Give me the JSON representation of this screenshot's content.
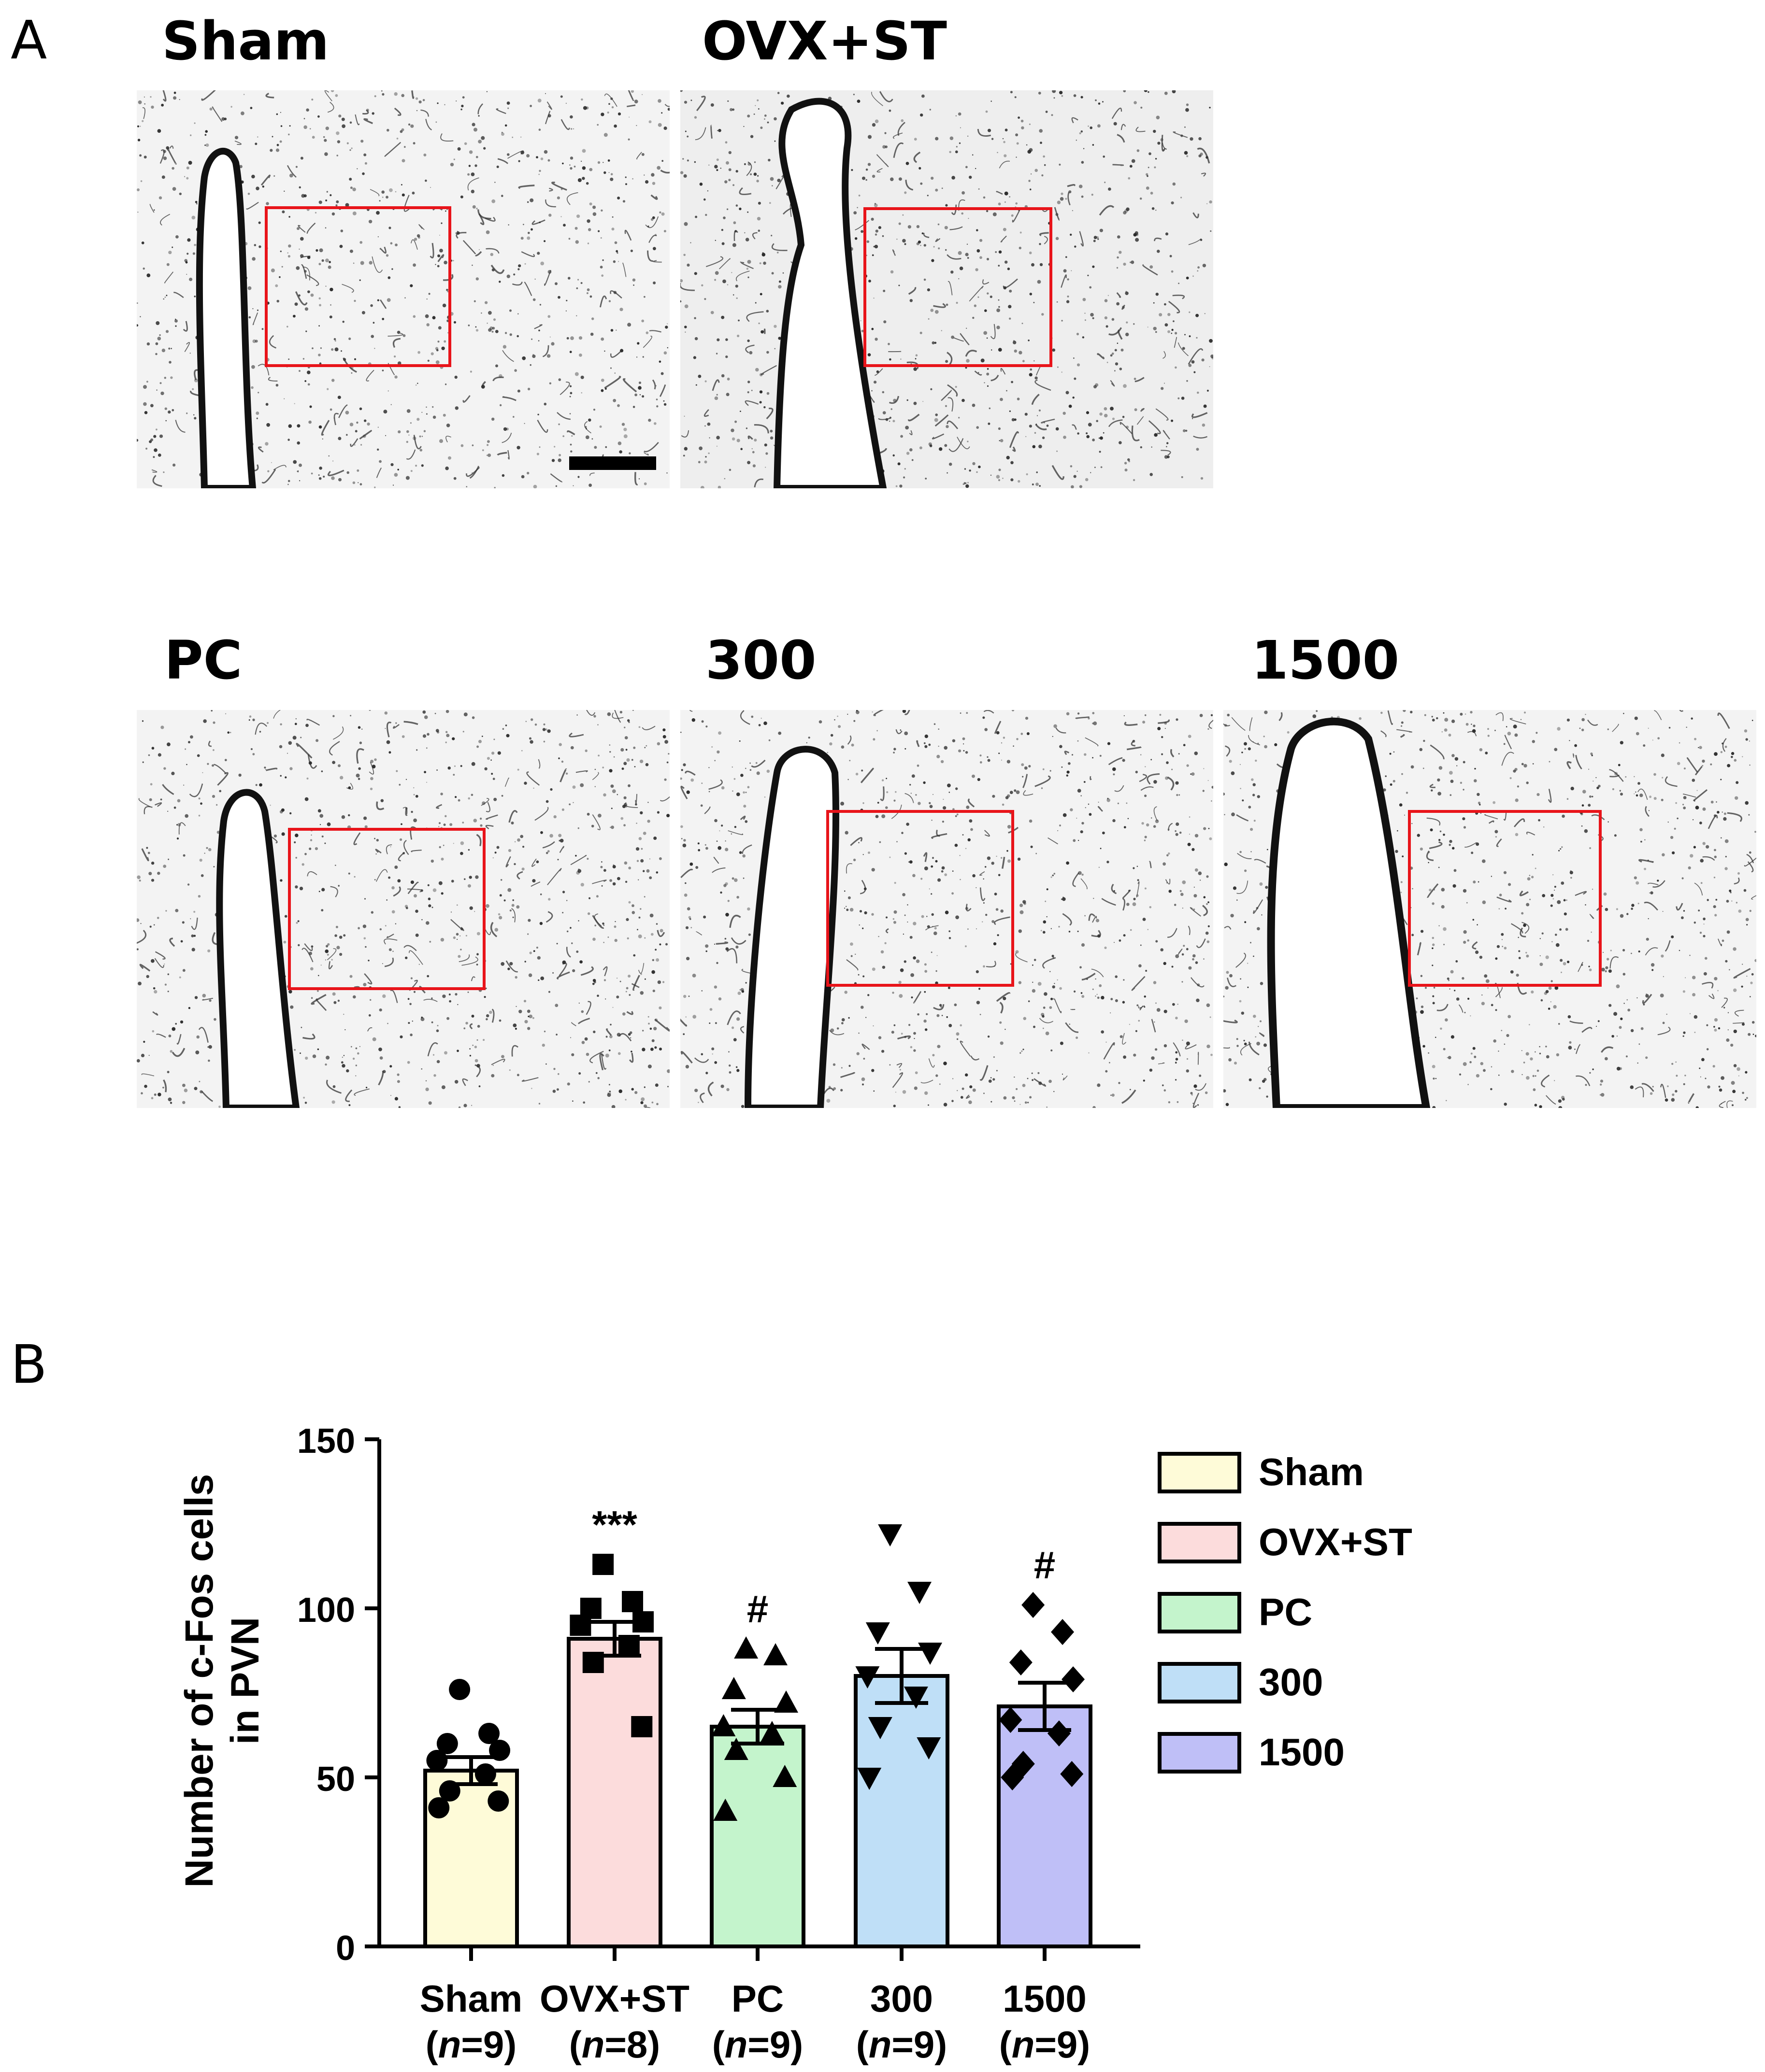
{
  "panel_labels": {
    "a": "A",
    "b": "B"
  },
  "micrographs": [
    {
      "label": "Sham"
    },
    {
      "label": "OVX+ST"
    },
    {
      "label": "PC"
    },
    {
      "label": "300"
    },
    {
      "label": "1500"
    }
  ],
  "chart_data": {
    "type": "bar",
    "ylabel_line1": "Number of c-Fos cells",
    "ylabel_line2": "in PVN",
    "ylim": [
      0,
      150
    ],
    "yticks": [
      0,
      50,
      100,
      150
    ],
    "categories": [
      "Sham",
      "OVX+ST",
      "PC",
      "300",
      "1500"
    ],
    "category_n": [
      "(n=9)",
      "(n=8)",
      "(n=9)",
      "(n=9)",
      "(n=9)"
    ],
    "n_label_parts": [
      {
        "n": "n",
        "eq": "=9"
      },
      {
        "n": "n",
        "eq": "=8"
      },
      {
        "n": "n",
        "eq": "=9"
      },
      {
        "n": "n",
        "eq": "=9"
      },
      {
        "n": "n",
        "eq": "=9"
      }
    ],
    "means": [
      52,
      91,
      65,
      80,
      71
    ],
    "sem": [
      4,
      5,
      5,
      8,
      7
    ],
    "colors": [
      "#fefbd8",
      "#fcdcdc",
      "#c4f4cc",
      "#bfdff7",
      "#bfbff7"
    ],
    "markers": [
      "circle",
      "square",
      "triangle-up",
      "triangle-down",
      "diamond"
    ],
    "points": [
      [
        76,
        63,
        60,
        58,
        55,
        51,
        46,
        43,
        41
      ],
      [
        113,
        102,
        100,
        96,
        95,
        89,
        84,
        65
      ],
      [
        88,
        86,
        76,
        72,
        65,
        63,
        58,
        50,
        40
      ],
      [
        122,
        105,
        93,
        87,
        80,
        74,
        65,
        59,
        50
      ],
      [
        101,
        93,
        84,
        79,
        67,
        63,
        54,
        51,
        50
      ]
    ],
    "annotations": [
      "",
      "***",
      "#",
      "",
      "#"
    ],
    "legend": [
      "Sham",
      "OVX+ST",
      "PC",
      "300",
      "1500"
    ],
    "legend_position": "right"
  }
}
